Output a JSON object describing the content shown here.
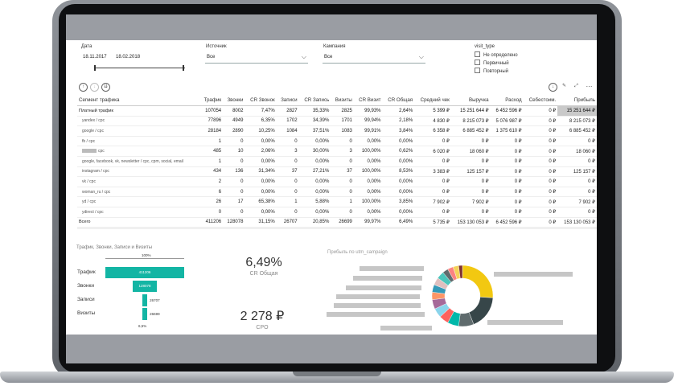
{
  "filters": {
    "date": {
      "label": "Дата",
      "from": "18.11.2017",
      "to": "18.02.2018"
    },
    "source": {
      "label": "Источник",
      "value": "Все"
    },
    "campaign": {
      "label": "Кампания",
      "value": "Все"
    },
    "visit_type": {
      "label": "visit_type",
      "options": [
        "Не определено",
        "Первичный",
        "Повторный"
      ]
    }
  },
  "table": {
    "columns": [
      "Сегмент трафика",
      "Трафик",
      "Звонки",
      "CR Звонок",
      "Записи",
      "CR Запись",
      "Визиты",
      "CR Визит",
      "CR Общая",
      "Средний чек",
      "Выручка",
      "Расход",
      "Себестоим.",
      "Прибыль"
    ],
    "rows": [
      {
        "segment": "Платный трафик",
        "main": true,
        "cells": [
          "107054",
          "8002",
          "7,47%",
          "2827",
          "35,33%",
          "2825",
          "99,93%",
          "2,64%",
          "5 399 ₽",
          "15 251 644 ₽",
          "6 452 596 ₽",
          "0 ₽",
          "15 251 644 ₽"
        ]
      },
      {
        "segment": "yandex / cpc",
        "cells": [
          "77896",
          "4949",
          "6,35%",
          "1702",
          "34,39%",
          "1701",
          "99,94%",
          "2,18%",
          "4 830 ₽",
          "8 215 073 ₽",
          "5 076 987 ₽",
          "0 ₽",
          "8 215 073 ₽"
        ]
      },
      {
        "segment": "google / cpc",
        "cells": [
          "28184",
          "2890",
          "10,25%",
          "1084",
          "37,51%",
          "1083",
          "99,91%",
          "3,84%",
          "6 358 ₽",
          "6 885 452 ₽",
          "1 375 610 ₽",
          "0 ₽",
          "6 885 452 ₽"
        ]
      },
      {
        "segment": "fb / cpc",
        "cells": [
          "1",
          "0",
          "0,00%",
          "0",
          "0,00%",
          "0",
          "0,00%",
          "0,00%",
          "0 ₽",
          "0 ₽",
          "0 ₽",
          "0 ₽",
          "0 ₽"
        ]
      },
      {
        "segment": "cpc",
        "redacted": true,
        "cells": [
          "485",
          "10",
          "2,06%",
          "3",
          "30,00%",
          "3",
          "100,00%",
          "0,62%",
          "6 020 ₽",
          "18 060 ₽",
          "0 ₽",
          "0 ₽",
          "18 060 ₽"
        ]
      },
      {
        "segment": "google, facebook, vk, newsletter / cpc, cpm, social, email",
        "cells": [
          "1",
          "0",
          "0,00%",
          "0",
          "0,00%",
          "0",
          "0,00%",
          "0,00%",
          "0 ₽",
          "0 ₽",
          "0 ₽",
          "0 ₽",
          "0 ₽"
        ]
      },
      {
        "segment": "instagram / cpc",
        "cells": [
          "434",
          "136",
          "31,34%",
          "37",
          "27,21%",
          "37",
          "100,00%",
          "8,53%",
          "3 383 ₽",
          "125 157 ₽",
          "0 ₽",
          "0 ₽",
          "125 157 ₽"
        ]
      },
      {
        "segment": "vk / cpc",
        "cells": [
          "2",
          "0",
          "0,00%",
          "0",
          "0,00%",
          "0",
          "0,00%",
          "0,00%",
          "0 ₽",
          "0 ₽",
          "0 ₽",
          "0 ₽",
          "0 ₽"
        ]
      },
      {
        "segment": "woman_ru / cpc",
        "cells": [
          "6",
          "0",
          "0,00%",
          "0",
          "0,00%",
          "0",
          "0,00%",
          "0,00%",
          "0 ₽",
          "0 ₽",
          "0 ₽",
          "0 ₽",
          "0 ₽"
        ]
      },
      {
        "segment": "yd / cpc",
        "cells": [
          "26",
          "17",
          "65,38%",
          "1",
          "5,88%",
          "1",
          "100,00%",
          "3,85%",
          "7 902 ₽",
          "7 902 ₽",
          "0 ₽",
          "0 ₽",
          "7 902 ₽"
        ]
      },
      {
        "segment": "ydirect / cpc",
        "cells": [
          "0",
          "0",
          "0,00%",
          "0",
          "0,00%",
          "0",
          "0,00%",
          "0,00%",
          "0 ₽",
          "0 ₽",
          "0 ₽",
          "0 ₽",
          "0 ₽"
        ]
      },
      {
        "segment": "Всего",
        "total": true,
        "cells": [
          "411206",
          "128078",
          "31,15%",
          "26707",
          "20,85%",
          "26699",
          "99,97%",
          "6,49%",
          "5 735 ₽",
          "153 130 053 ₽",
          "6 452 596 ₽",
          "0 ₽",
          "153 130 053 ₽"
        ]
      }
    ]
  },
  "funnel": {
    "title": "Трафик, Звонки, Записи и Визиты",
    "top_pct": "100%",
    "bottom_pct": "6,5%",
    "stages": [
      {
        "label": "Трафик",
        "value": "411206",
        "share": 1.0
      },
      {
        "label": "Звонки",
        "value": "128078",
        "share": 0.311
      },
      {
        "label": "Записи",
        "value": "26707",
        "share": 0.065
      },
      {
        "label": "Визиты",
        "value": "26699",
        "share": 0.065
      }
    ]
  },
  "kpis": [
    {
      "value": "6,49%",
      "caption": "CR Общая"
    },
    {
      "value": "2 278 ₽",
      "caption": "CPO"
    }
  ],
  "donut": {
    "title": "Прибыль по utm_campaign",
    "segments": [
      {
        "share": 0.26,
        "color": "#f2c811"
      },
      {
        "share": 0.18,
        "color": "#374649"
      },
      {
        "share": 0.08,
        "color": "#5f6b6d"
      },
      {
        "share": 0.06,
        "color": "#01b8aa"
      },
      {
        "share": 0.05,
        "color": "#fd625e"
      },
      {
        "share": 0.05,
        "color": "#8ad4eb"
      },
      {
        "share": 0.05,
        "color": "#a66999"
      },
      {
        "share": 0.04,
        "color": "#fe9666"
      },
      {
        "share": 0.04,
        "color": "#3599b8"
      },
      {
        "share": 0.04,
        "color": "#dfbfbf"
      },
      {
        "share": 0.04,
        "color": "#4ac5bb"
      },
      {
        "share": 0.03,
        "color": "#5f6b6d"
      },
      {
        "share": 0.03,
        "color": "#fb8281"
      },
      {
        "share": 0.03,
        "color": "#f4d25a"
      },
      {
        "share": 0.02,
        "color": "#7f312f"
      }
    ]
  },
  "colors": {
    "accent": "#13b5a4",
    "highlight": "#c9c9c9"
  }
}
